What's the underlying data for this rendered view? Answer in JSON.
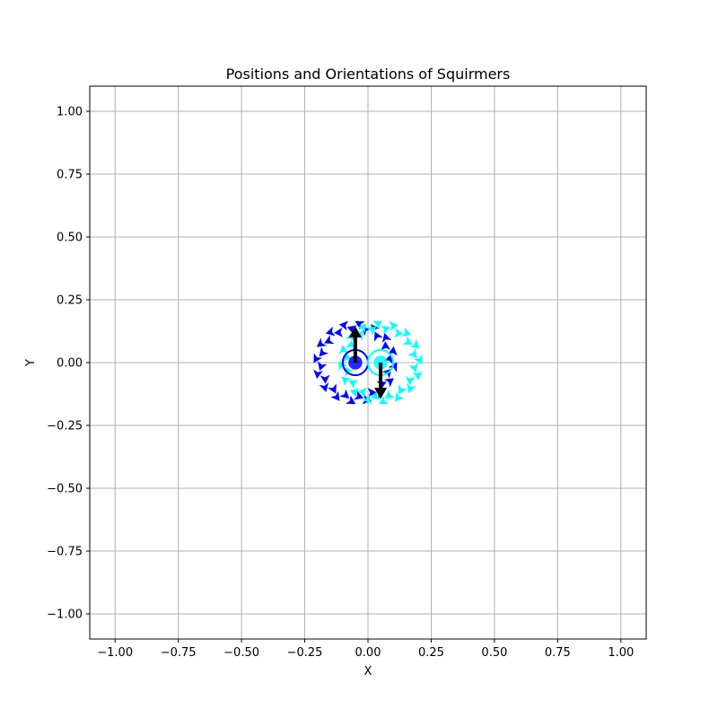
{
  "chart_data": {
    "type": "scatter",
    "title": "Positions and Orientations of Squirmers",
    "xlabel": "X",
    "ylabel": "Y",
    "xlim": [
      -1.1,
      1.1
    ],
    "ylim": [
      -1.1,
      1.1
    ],
    "xticks": [
      -1.0,
      -0.75,
      -0.5,
      -0.25,
      0.0,
      0.25,
      0.5,
      0.75,
      1.0
    ],
    "yticks": [
      -1.0,
      -0.75,
      -0.5,
      -0.25,
      0.0,
      0.25,
      0.5,
      0.75,
      1.0
    ],
    "xtick_labels": [
      "−1.00",
      "−0.75",
      "−0.50",
      "−0.25",
      "0.00",
      "0.25",
      "0.50",
      "0.75",
      "1.00"
    ],
    "ytick_labels": [
      "−1.00",
      "−0.75",
      "−0.50",
      "−0.25",
      "0.00",
      "0.25",
      "0.50",
      "0.75",
      "1.00"
    ],
    "grid": true,
    "colors": {
      "squirmer_1": "#0000ff",
      "squirmer_2": "#00ffff",
      "orientation": "#000000",
      "grid": "#b0b0b0"
    },
    "squirmers": [
      {
        "id": 1,
        "color": "#0000ff",
        "x": -0.05,
        "y": 0.0,
        "radius": 0.05,
        "orientation": [
          0,
          1
        ]
      },
      {
        "id": 2,
        "color": "#00ffff",
        "x": 0.05,
        "y": 0.0,
        "radius": 0.05,
        "orientation": [
          0,
          -1
        ]
      }
    ],
    "flow_field": {
      "arrows_per_ring": 16,
      "ring_radii": [
        0.13,
        0.15
      ],
      "head_size": 0.035
    }
  }
}
